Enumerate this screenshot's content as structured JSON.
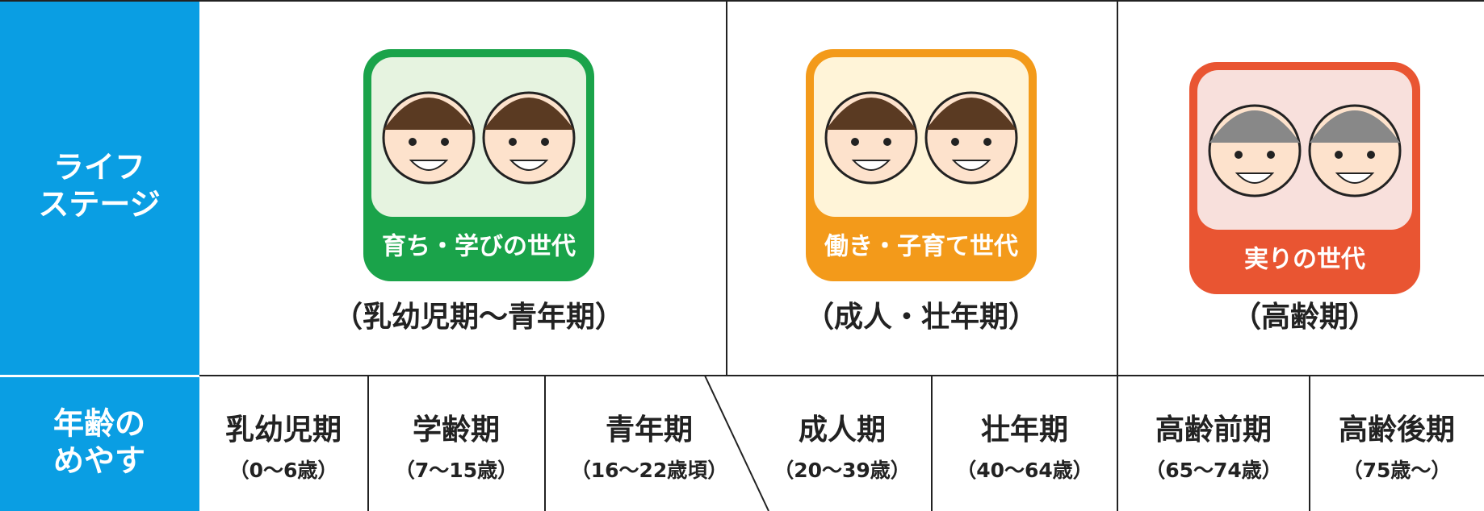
{
  "row_headers": [
    [
      "ライフ",
      "ステージ"
    ],
    [
      "年齢の",
      "めやす"
    ]
  ],
  "stages": [
    {
      "badge": "育ち・学びの世代",
      "period": "（乳幼児期～青年期）"
    },
    {
      "badge": "働き・子育て世代",
      "period": "（成人・壮年期）"
    },
    {
      "badge": "実りの世代",
      "period": "（高齢期）"
    }
  ],
  "ages": [
    {
      "name": "乳幼児期",
      "range": "（0～6歳）"
    },
    {
      "name": "学齢期",
      "range": "（7～15歳）"
    },
    {
      "name": "青年期",
      "range": "（16～22歳頃）"
    },
    {
      "name": "成人期",
      "range": "（20～39歳）"
    },
    {
      "name": "壮年期",
      "range": "（40～64歳）"
    },
    {
      "name": "高齢前期",
      "range": "（65～74歳）"
    },
    {
      "name": "高齢後期",
      "range": "（75歳～）"
    }
  ]
}
